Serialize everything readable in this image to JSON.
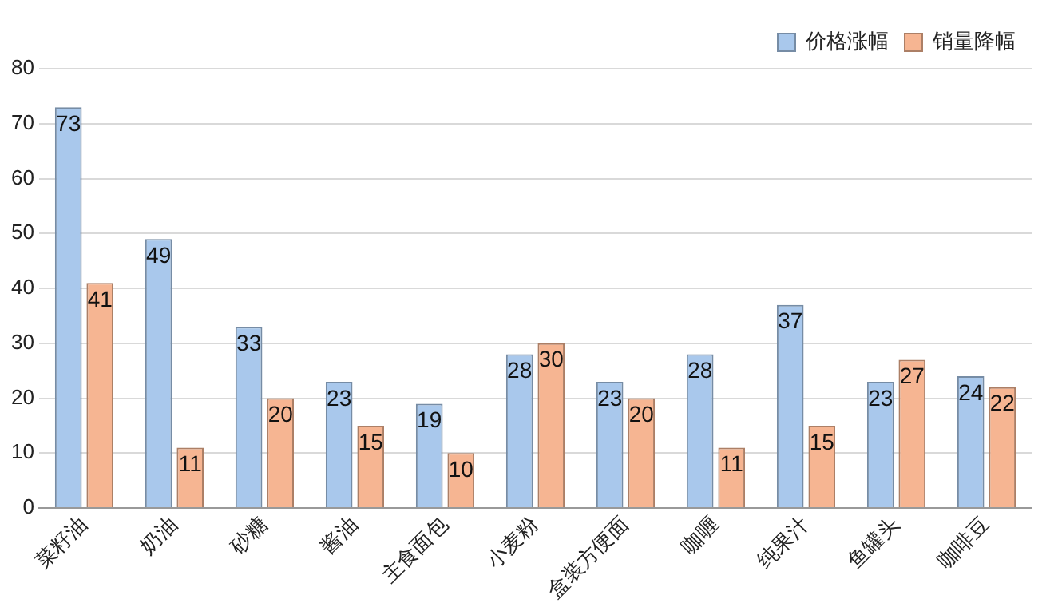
{
  "chart_data": {
    "type": "bar",
    "categories": [
      "菜籽油",
      "奶油",
      "砂糖",
      "酱油",
      "主食面包",
      "小麦粉",
      "盒装方便面",
      "咖喱",
      "纯果汁",
      "鱼罐头",
      "咖啡豆"
    ],
    "series": [
      {
        "name": "价格涨幅",
        "color": "#a9c8ec",
        "values": [
          73,
          49,
          33,
          23,
          19,
          28,
          23,
          28,
          37,
          23,
          24
        ]
      },
      {
        "name": "销量降幅",
        "color": "#f6b592",
        "values": [
          41,
          11,
          20,
          15,
          10,
          30,
          20,
          11,
          15,
          27,
          22
        ]
      }
    ],
    "ylim": [
      0,
      80
    ],
    "yticks": [
      0,
      10,
      20,
      30,
      40,
      50,
      60,
      70,
      80
    ],
    "grid": "y",
    "legend": "top right",
    "data_labels": true
  }
}
